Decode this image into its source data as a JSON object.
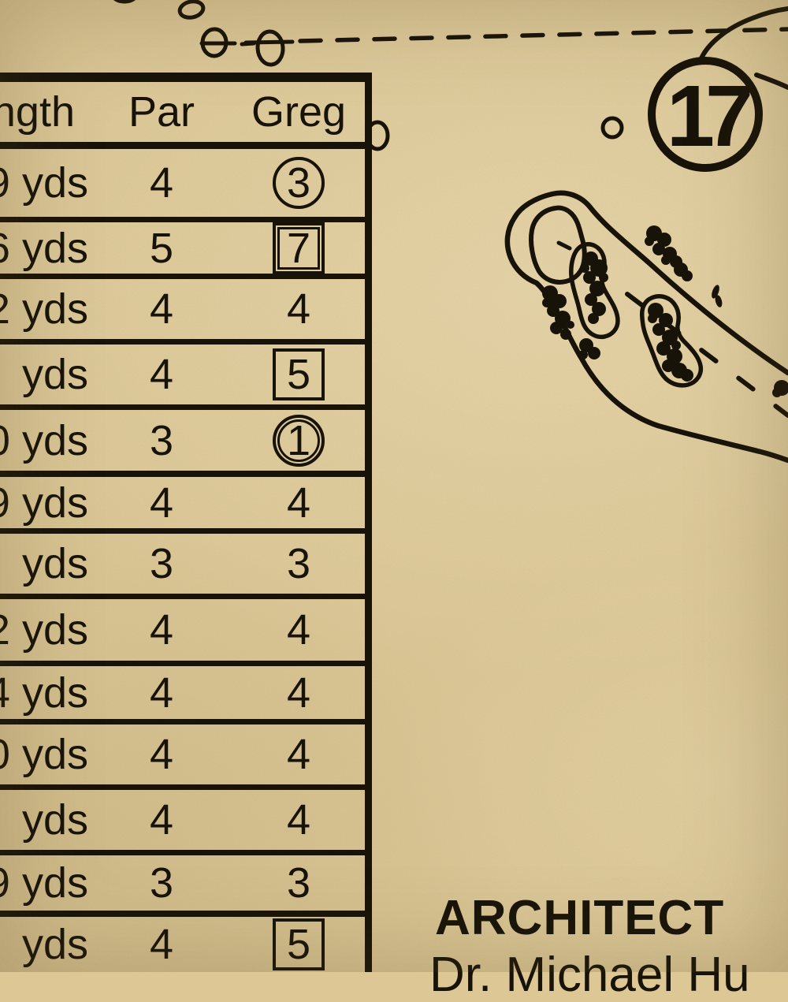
{
  "colors": {
    "paper": "#dcc795",
    "ink": "#181309"
  },
  "scorecard": {
    "headers": {
      "length": "ngth",
      "par": "Par",
      "player": "Greg"
    },
    "rows": [
      {
        "length": "9 yds",
        "par": "4",
        "score": "3",
        "marker": "circle"
      },
      {
        "length": "6 yds",
        "par": "5",
        "score": "7",
        "marker": "double-square"
      },
      {
        "length": "2 yds",
        "par": "4",
        "score": "4",
        "marker": "none"
      },
      {
        "length": "yds",
        "par": "4",
        "score": "5",
        "marker": "square"
      },
      {
        "length": "0 yds",
        "par": "3",
        "score": "1",
        "marker": "double-circle"
      },
      {
        "length": "9 yds",
        "par": "4",
        "score": "4",
        "marker": "none"
      },
      {
        "length": "yds",
        "par": "3",
        "score": "3",
        "marker": "none"
      },
      {
        "length": "2 yds",
        "par": "4",
        "score": "4",
        "marker": "none"
      },
      {
        "length": "4 yds",
        "par": "4",
        "score": "4",
        "marker": "none"
      },
      {
        "length": "0 yds",
        "par": "4",
        "score": "4",
        "marker": "none"
      },
      {
        "length": "yds",
        "par": "4",
        "score": "4",
        "marker": "none"
      },
      {
        "length": "9 yds",
        "par": "3",
        "score": "3",
        "marker": "none"
      },
      {
        "length": "yds",
        "par": "4",
        "score": "5",
        "marker": "square"
      }
    ]
  },
  "map": {
    "hole_number": "17"
  },
  "footer": {
    "heading": "ARCHITECT",
    "architect_name": "Dr. Michael Hu"
  }
}
